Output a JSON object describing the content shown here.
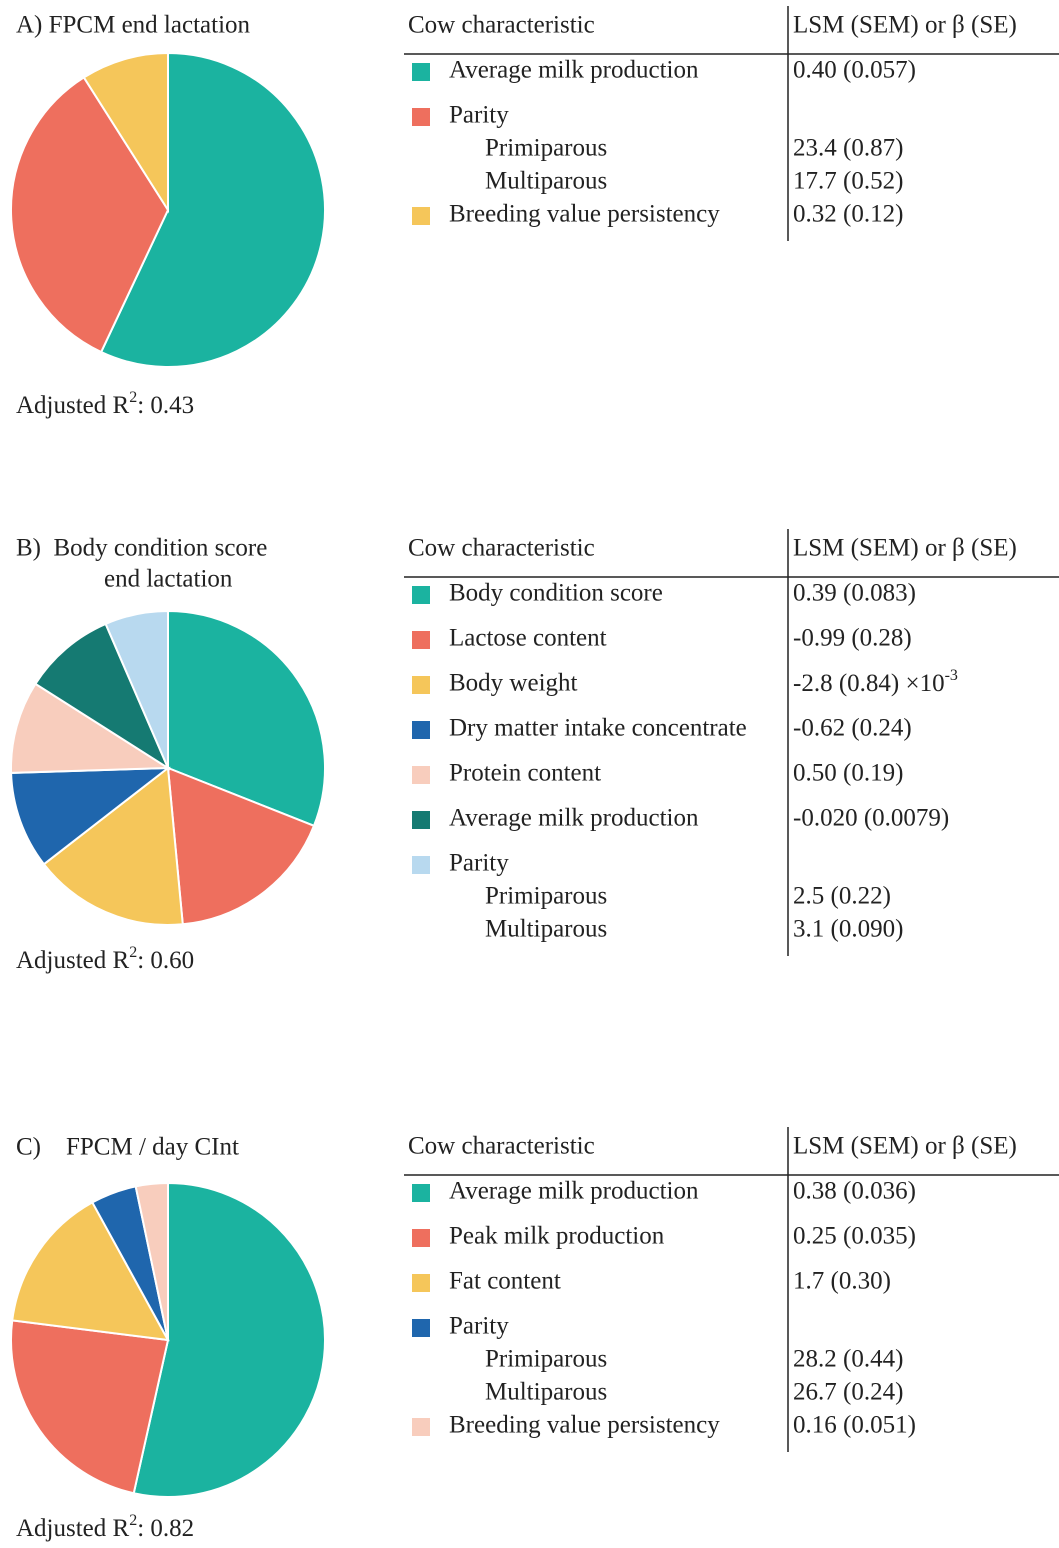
{
  "chart_data": [
    {
      "type": "pie",
      "title": [
        "A) FPCM end lactation"
      ],
      "columns": [
        "Cow characteristic",
        "LSM (SEM) or β (SE)"
      ],
      "categories": [
        "Average milk production",
        "Parity",
        "Breeding value persistency"
      ],
      "values": [
        57,
        34,
        9
      ],
      "colors": [
        "#1bb3a0",
        "#ee6f5e",
        "#f5c65a"
      ],
      "estimates": [
        "0.40 (0.057)",
        [
          {
            "label": "Primiparous",
            "estimate": "23.4 (0.87)"
          },
          {
            "label": "Multiparous",
            "estimate": "17.7 (0.52)"
          }
        ],
        "0.32 (0.12)"
      ],
      "r2_label": "Adjusted R",
      "r2_sup": "2",
      "r2_value": ": 0.43"
    },
    {
      "type": "pie",
      "title": [
        "B)  Body condition score",
        "end lactation"
      ],
      "columns": [
        "Cow characteristic",
        "LSM (SEM) or β (SE)"
      ],
      "categories": [
        "Body condition score",
        "Lactose content",
        "Body weight",
        "Dry matter intake concentrate",
        "Protein content",
        "Average milk production",
        "Parity"
      ],
      "values": [
        31,
        17.5,
        16,
        10,
        9.5,
        9.5,
        6.5
      ],
      "colors": [
        "#1bb3a0",
        "#ee6f5e",
        "#f5c65a",
        "#1f66ad",
        "#f8cdbd",
        "#157a72",
        "#b8d9ef"
      ],
      "estimates": [
        "0.39 (0.083)",
        "-0.99 (0.28)",
        {
          "text": "-2.8 (0.84) ×10",
          "sup": "-3"
        },
        "-0.62 (0.24)",
        "0.50 (0.19)",
        "-0.020 (0.0079)",
        [
          {
            "label": "Primiparous",
            "estimate": "2.5 (0.22)"
          },
          {
            "label": "Multiparous",
            "estimate": "3.1 (0.090)"
          }
        ]
      ],
      "r2_label": "Adjusted R",
      "r2_sup": "2",
      "r2_value": ": 0.60"
    },
    {
      "type": "pie",
      "title": [
        "C)    FPCM / day CInt"
      ],
      "columns": [
        "Cow characteristic",
        "LSM (SEM) or β (SE)"
      ],
      "categories": [
        "Average milk production",
        "Peak milk production",
        "Fat content",
        "Parity",
        "Breeding value persistency"
      ],
      "values": [
        53.5,
        23.5,
        15,
        4.7,
        3.3
      ],
      "colors": [
        "#1bb3a0",
        "#ee6f5e",
        "#f5c65a",
        "#1f66ad",
        "#f8cdbd"
      ],
      "estimates": [
        "0.38 (0.036)",
        "0.25 (0.035)",
        "1.7 (0.30)",
        [
          {
            "label": "Primiparous",
            "estimate": "28.2 (0.44)"
          },
          {
            "label": "Multiparous",
            "estimate": "26.7 (0.24)"
          }
        ],
        "0.16 (0.051)"
      ],
      "r2_label": "Adjusted R",
      "r2_sup": "2",
      "r2_value": ": 0.82"
    }
  ]
}
